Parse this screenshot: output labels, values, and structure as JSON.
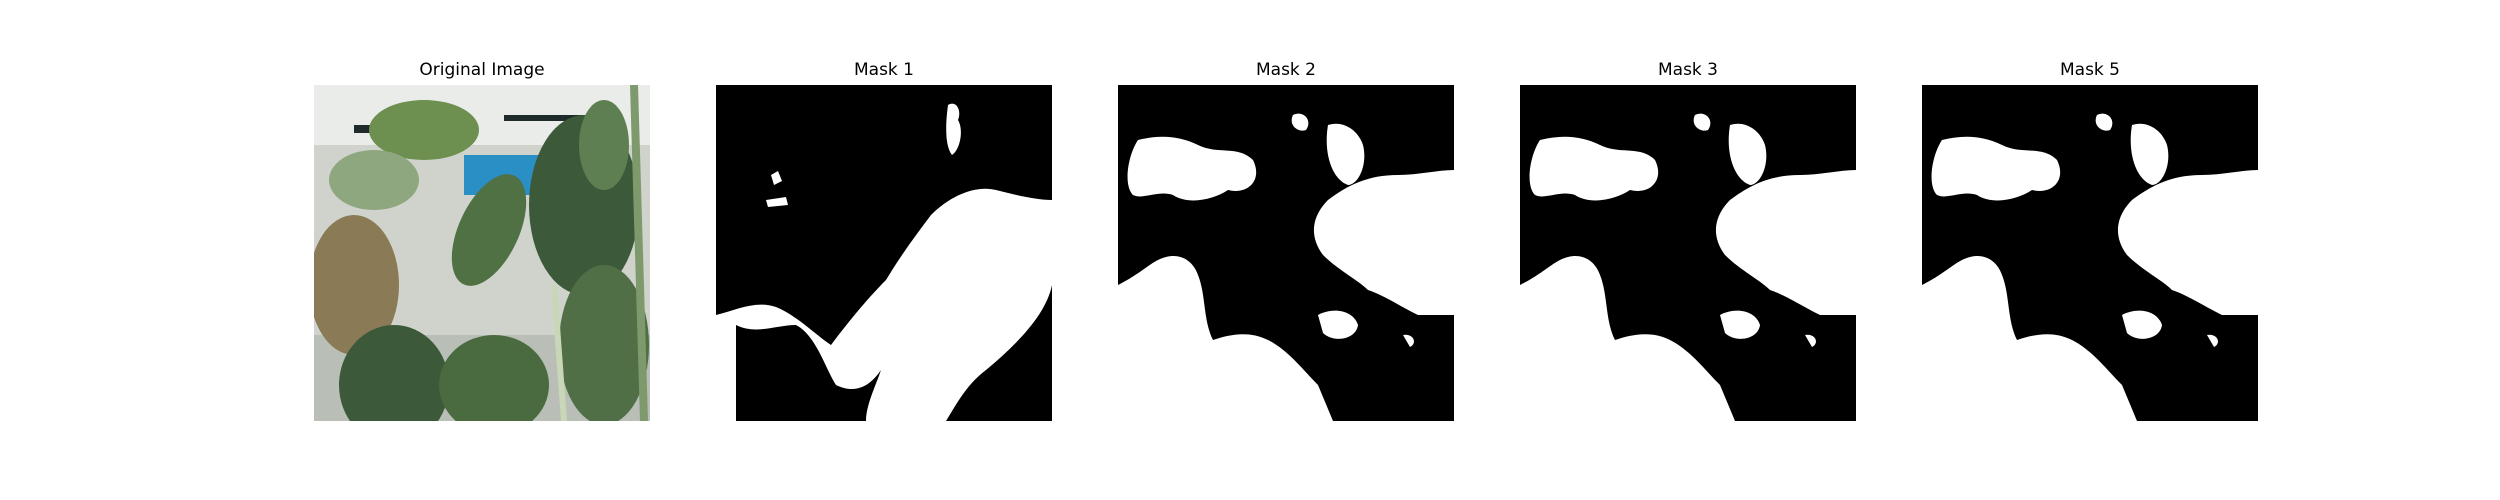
{
  "panels": [
    {
      "title": "Original Image",
      "kind": "photo"
    },
    {
      "title": "Mask 1",
      "kind": "mask"
    },
    {
      "title": "Mask 2",
      "kind": "mask"
    },
    {
      "title": "Mask 3",
      "kind": "mask"
    },
    {
      "title": "Mask 5",
      "kind": "mask"
    }
  ],
  "colors": {
    "background": "#ffffff",
    "mask_foreground": "#ffffff",
    "mask_background": "#000000",
    "leaf_dark": "#3c5a3a",
    "leaf_mid": "#5e7f52",
    "leaf_light": "#8fa77e",
    "leaf_brown": "#8a7a55",
    "accent_blue": "#2a8fc4"
  }
}
